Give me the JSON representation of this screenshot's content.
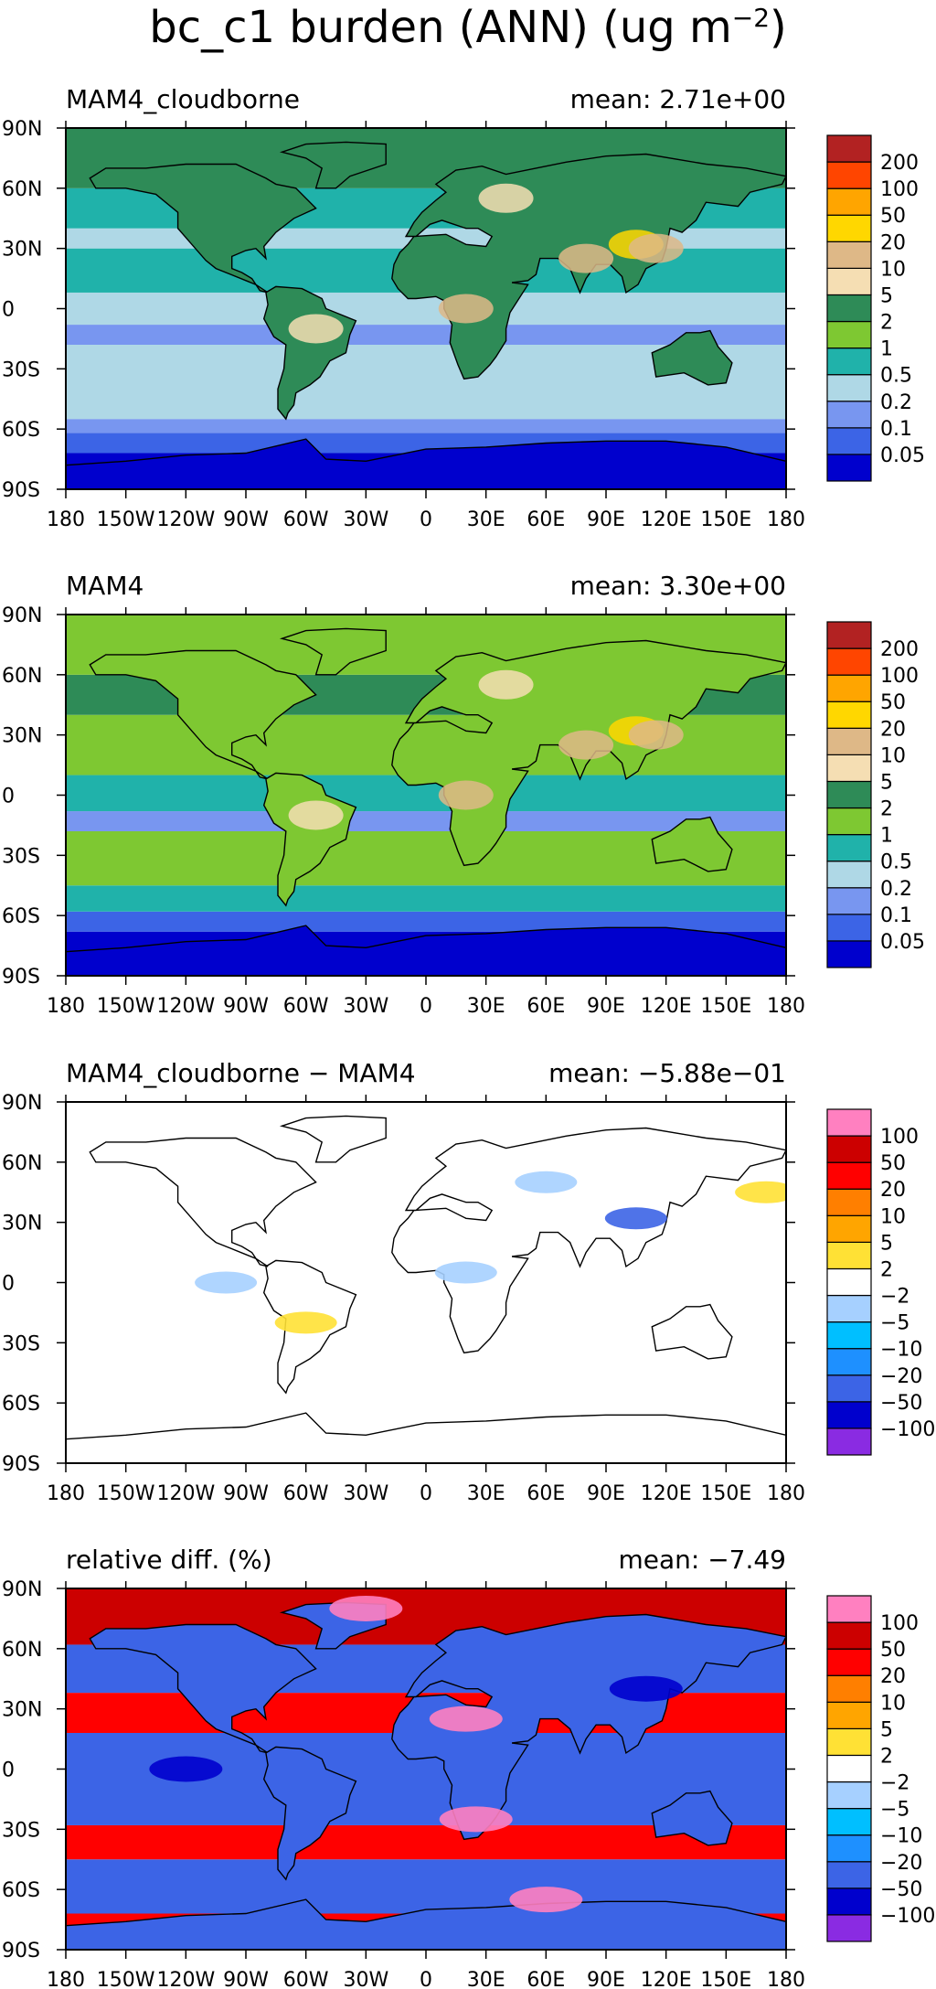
{
  "title": {
    "prefix": "bc_c1 burden (ANN) (ug m",
    "superscript": "−2",
    "suffix": ")"
  },
  "axes": {
    "x_ticks": [
      "180",
      "150W",
      "120W",
      "90W",
      "60W",
      "30W",
      "0",
      "30E",
      "60E",
      "90E",
      "120E",
      "150E",
      "180"
    ],
    "y_ticks": [
      "90N",
      "60N",
      "30N",
      "0",
      "30S",
      "60S",
      "90S"
    ]
  },
  "chart_data": [
    {
      "type": "heatmap",
      "title": "MAM4_cloudborne",
      "mean_text": "mean: 2.71e+00",
      "xlim": [
        -180,
        180
      ],
      "ylim": [
        -90,
        90
      ],
      "colorbar": {
        "colors": [
          "#0000cd",
          "#3c64e6",
          "#7896f0",
          "#afd8e6",
          "#20b2aa",
          "#7ec832",
          "#2e8b57",
          "#f5deb3",
          "#deb887",
          "#ffd700",
          "#ffa500",
          "#ff4500",
          "#b22222"
        ],
        "labels": [
          "0.05",
          "0.1",
          "0.2",
          "0.5",
          "1",
          "2",
          "5",
          "10",
          "20",
          "50",
          "100",
          "200"
        ]
      }
    },
    {
      "type": "heatmap",
      "title": "MAM4",
      "mean_text": "mean: 3.30e+00",
      "xlim": [
        -180,
        180
      ],
      "ylim": [
        -90,
        90
      ],
      "colorbar": {
        "colors": [
          "#0000cd",
          "#3c64e6",
          "#7896f0",
          "#afd8e6",
          "#20b2aa",
          "#7ec832",
          "#2e8b57",
          "#f5deb3",
          "#deb887",
          "#ffd700",
          "#ffa500",
          "#ff4500",
          "#b22222"
        ],
        "labels": [
          "0.05",
          "0.1",
          "0.2",
          "0.5",
          "1",
          "2",
          "5",
          "10",
          "20",
          "50",
          "100",
          "200"
        ]
      }
    },
    {
      "type": "heatmap",
      "title": "MAM4_cloudborne − MAM4",
      "mean_text": "mean: −5.88e−01",
      "xlim": [
        -180,
        180
      ],
      "ylim": [
        -90,
        90
      ],
      "colorbar": {
        "colors": [
          "#8a2be2",
          "#0000cd",
          "#3c64e6",
          "#1e90ff",
          "#00bfff",
          "#a6d0ff",
          "#ffffff",
          "#ffe135",
          "#ffa500",
          "#ff7f00",
          "#ff0000",
          "#cc0000",
          "#ff80c0"
        ],
        "labels": [
          "−100",
          "−50",
          "−20",
          "−10",
          "−5",
          "−2",
          "2",
          "5",
          "10",
          "20",
          "50",
          "100"
        ]
      }
    },
    {
      "type": "heatmap",
      "title": "relative diff. (%)",
      "mean_text": "mean: −7.49",
      "xlim": [
        -180,
        180
      ],
      "ylim": [
        -90,
        90
      ],
      "colorbar": {
        "colors": [
          "#8a2be2",
          "#0000cd",
          "#3c64e6",
          "#1e90ff",
          "#00bfff",
          "#a6d0ff",
          "#ffffff",
          "#ffe135",
          "#ffa500",
          "#ff7f00",
          "#ff0000",
          "#cc0000",
          "#ff80c0"
        ],
        "labels": [
          "−100",
          "−50",
          "−20",
          "−10",
          "−5",
          "−2",
          "2",
          "5",
          "10",
          "20",
          "50",
          "100"
        ]
      }
    }
  ]
}
